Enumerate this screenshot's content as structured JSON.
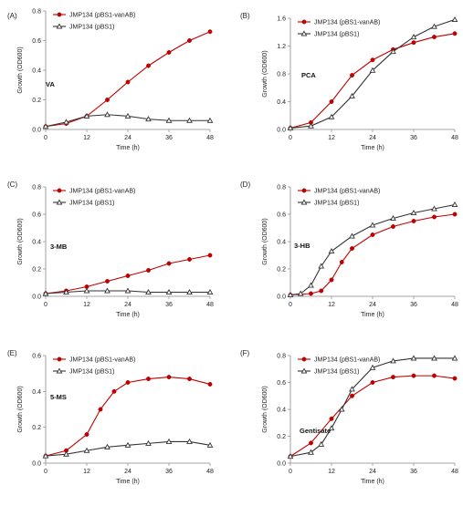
{
  "chart_data": [
    {
      "type": "line",
      "panel_label": "(A)",
      "compound": "VA",
      "xlabel": "Time (h)",
      "ylabel": "Growth (OD600)",
      "xlim": [
        0,
        48
      ],
      "ylim": [
        0,
        0.8
      ],
      "xticks": [
        "0",
        "12",
        "24",
        "36",
        "48"
      ],
      "yticks": [
        "0.0",
        "0.2",
        "0.4",
        "0.6",
        "0.8"
      ],
      "legend_position": "top-left",
      "series": [
        {
          "name": "JMP134 (pBS1-vanAB)",
          "color": "#c00000",
          "marker": "circle",
          "x": [
            0,
            6,
            12,
            18,
            24,
            30,
            36,
            42,
            48
          ],
          "y": [
            0.02,
            0.04,
            0.09,
            0.2,
            0.32,
            0.43,
            0.52,
            0.6,
            0.66
          ]
        },
        {
          "name": "JMP134 (pBS1)",
          "color": "#333333",
          "marker": "triangle",
          "x": [
            0,
            6,
            12,
            18,
            24,
            30,
            36,
            42,
            48
          ],
          "y": [
            0.02,
            0.05,
            0.09,
            0.1,
            0.09,
            0.07,
            0.06,
            0.06,
            0.06
          ]
        }
      ]
    },
    {
      "type": "line",
      "panel_label": "(B)",
      "compound": "PCA",
      "xlabel": "Time (h)",
      "ylabel": "Growth (OD600)",
      "xlim": [
        0,
        48
      ],
      "ylim": [
        0,
        1.6
      ],
      "xticks": [
        "0",
        "12",
        "24",
        "36",
        "48"
      ],
      "yticks": [
        "0.0",
        "0.4",
        "0.8",
        "1.2",
        "1.6"
      ],
      "legend_position": "top-left",
      "series": [
        {
          "name": "JMP134 (pBS1-vanAB)",
          "color": "#c00000",
          "marker": "circle",
          "x": [
            0,
            6,
            12,
            18,
            24,
            30,
            36,
            42,
            48
          ],
          "y": [
            0.02,
            0.1,
            0.4,
            0.78,
            1.0,
            1.15,
            1.25,
            1.33,
            1.38
          ]
        },
        {
          "name": "JMP134 (pBS1)",
          "color": "#333333",
          "marker": "triangle",
          "x": [
            0,
            6,
            12,
            18,
            24,
            30,
            36,
            42,
            48
          ],
          "y": [
            0.02,
            0.05,
            0.18,
            0.48,
            0.85,
            1.12,
            1.33,
            1.48,
            1.58
          ]
        }
      ]
    },
    {
      "type": "line",
      "panel_label": "(C)",
      "compound": "3-MB",
      "xlabel": "Time (h)",
      "ylabel": "Growth (OD600)",
      "xlim": [
        0,
        48
      ],
      "ylim": [
        0,
        0.8
      ],
      "xticks": [
        "0",
        "12",
        "24",
        "36",
        "48"
      ],
      "yticks": [
        "0.0",
        "0.2",
        "0.4",
        "0.6",
        "0.8"
      ],
      "legend_position": "top-left",
      "series": [
        {
          "name": "JMP134 (pBS1-vanAB)",
          "color": "#c00000",
          "marker": "circle",
          "x": [
            0,
            6,
            12,
            18,
            24,
            30,
            36,
            42,
            48
          ],
          "y": [
            0.02,
            0.04,
            0.07,
            0.11,
            0.15,
            0.19,
            0.24,
            0.27,
            0.3
          ]
        },
        {
          "name": "JMP134 (pBS1)",
          "color": "#333333",
          "marker": "triangle",
          "x": [
            0,
            6,
            12,
            18,
            24,
            30,
            36,
            42,
            48
          ],
          "y": [
            0.02,
            0.03,
            0.04,
            0.04,
            0.04,
            0.03,
            0.03,
            0.03,
            0.03
          ]
        }
      ]
    },
    {
      "type": "line",
      "panel_label": "(D)",
      "compound": "3-HB",
      "xlabel": "Time (h)",
      "ylabel": "Growth (OD600)",
      "xlim": [
        0,
        48
      ],
      "ylim": [
        0,
        0.8
      ],
      "xticks": [
        "0",
        "12",
        "24",
        "36",
        "48"
      ],
      "yticks": [
        "0.0",
        "0.2",
        "0.4",
        "0.6",
        "0.8"
      ],
      "legend_position": "top-left",
      "series": [
        {
          "name": "JMP134 (pBS1-vanAB)",
          "color": "#c00000",
          "marker": "circle",
          "x": [
            0,
            6,
            9,
            12,
            15,
            18,
            24,
            30,
            36,
            42,
            48
          ],
          "y": [
            0.01,
            0.02,
            0.04,
            0.12,
            0.25,
            0.35,
            0.45,
            0.51,
            0.55,
            0.58,
            0.6
          ]
        },
        {
          "name": "JMP134 (pBS1)",
          "color": "#333333",
          "marker": "triangle",
          "x": [
            0,
            3,
            6,
            9,
            12,
            18,
            24,
            30,
            36,
            42,
            48
          ],
          "y": [
            0.01,
            0.02,
            0.08,
            0.22,
            0.33,
            0.44,
            0.52,
            0.57,
            0.61,
            0.64,
            0.67
          ]
        }
      ]
    },
    {
      "type": "line",
      "panel_label": "(E)",
      "compound": "5-MS",
      "xlabel": "Time (h)",
      "ylabel": "Growth (OD600)",
      "xlim": [
        0,
        48
      ],
      "ylim": [
        0,
        0.6
      ],
      "xticks": [
        "0",
        "12",
        "24",
        "36",
        "48"
      ],
      "yticks": [
        "0.0",
        "0.2",
        "0.4",
        "0.6"
      ],
      "legend_position": "top-left",
      "series": [
        {
          "name": "JMP134 (pBS1-vanAB)",
          "color": "#c00000",
          "marker": "circle",
          "x": [
            0,
            6,
            12,
            16,
            20,
            24,
            30,
            36,
            42,
            48
          ],
          "y": [
            0.04,
            0.07,
            0.16,
            0.3,
            0.4,
            0.45,
            0.47,
            0.48,
            0.47,
            0.44
          ]
        },
        {
          "name": "JMP134 (pBS1)",
          "color": "#333333",
          "marker": "triangle",
          "x": [
            0,
            6,
            12,
            18,
            24,
            30,
            36,
            42,
            48
          ],
          "y": [
            0.04,
            0.05,
            0.07,
            0.09,
            0.1,
            0.11,
            0.12,
            0.12,
            0.1
          ]
        }
      ]
    },
    {
      "type": "line",
      "panel_label": "(F)",
      "compound": "Gentisate",
      "xlabel": "Time (h)",
      "ylabel": "Growth (OD600)",
      "xlim": [
        0,
        48
      ],
      "ylim": [
        0,
        0.8
      ],
      "xticks": [
        "0",
        "12",
        "24",
        "36",
        "48"
      ],
      "yticks": [
        "0.0",
        "0.2",
        "0.4",
        "0.6",
        "0.8"
      ],
      "legend_position": "top-left",
      "series": [
        {
          "name": "JMP134 (pBS1-vanAB)",
          "color": "#c00000",
          "marker": "circle",
          "x": [
            0,
            6,
            12,
            18,
            24,
            30,
            36,
            42,
            48
          ],
          "y": [
            0.05,
            0.15,
            0.33,
            0.5,
            0.6,
            0.64,
            0.65,
            0.65,
            0.63
          ]
        },
        {
          "name": "JMP134 (pBS1)",
          "color": "#333333",
          "marker": "triangle",
          "x": [
            0,
            6,
            9,
            12,
            15,
            18,
            24,
            30,
            36,
            42,
            48
          ],
          "y": [
            0.05,
            0.08,
            0.14,
            0.26,
            0.4,
            0.55,
            0.71,
            0.76,
            0.78,
            0.78,
            0.78
          ]
        }
      ]
    }
  ]
}
